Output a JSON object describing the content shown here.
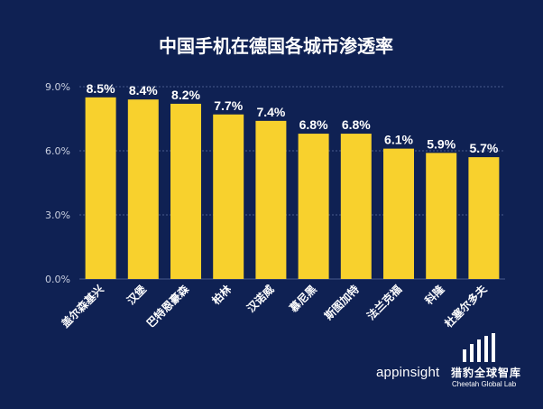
{
  "chart_data": {
    "type": "bar",
    "title": "中国手机在德国各城市渗透率",
    "categories": [
      "盖尔森基兴",
      "汉堡",
      "巴特恩豪森",
      "柏林",
      "汉诺威",
      "慕尼黑",
      "斯图加特",
      "法兰克福",
      "科隆",
      "杜塞尔多夫"
    ],
    "values": [
      8.5,
      8.4,
      8.2,
      7.7,
      7.4,
      6.8,
      6.8,
      6.1,
      5.9,
      5.7
    ],
    "value_labels": [
      "8.5%",
      "8.4%",
      "8.2%",
      "7.7%",
      "7.4%",
      "6.8%",
      "6.8%",
      "6.1%",
      "5.9%",
      "5.7%"
    ],
    "ylim": [
      0,
      9
    ],
    "yticks": [
      0,
      3,
      6,
      9
    ],
    "ytick_labels": [
      "0.0%",
      "3.0%",
      "6.0%",
      "9.0%"
    ],
    "xlabel": "",
    "ylabel": "",
    "grid": true
  },
  "colors": {
    "background": "#0f2153",
    "bar": "#f8d12d",
    "text": "#ffffff",
    "axis_text": "#c9cfe0",
    "grid": "#4a5c8c"
  },
  "branding": {
    "app": "appinsight",
    "lab_cn": "猎豹全球智库",
    "lab_en": "Cheetah Global Lab"
  }
}
